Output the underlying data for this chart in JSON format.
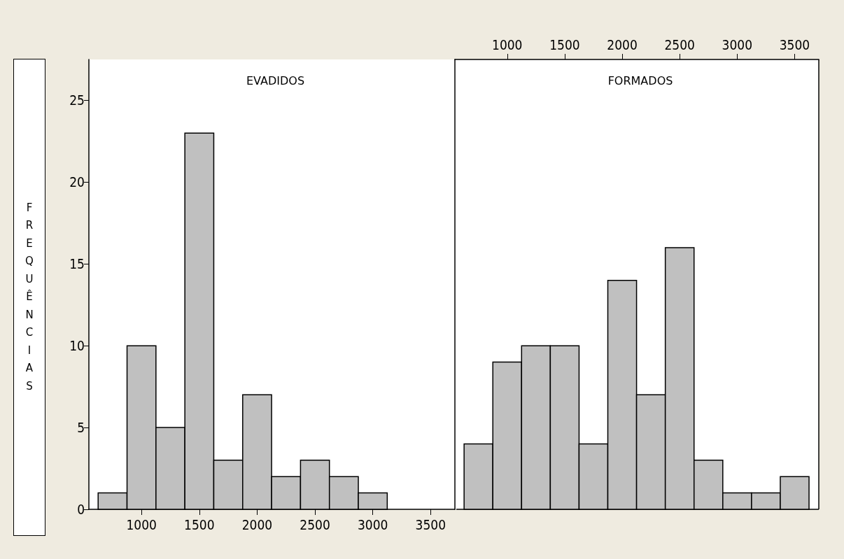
{
  "chart_data": [
    {
      "type": "histogram",
      "title": "EVADIDOS",
      "ylabel": "FREQUÊNCIAS",
      "bins": [
        625,
        875,
        1125,
        1375,
        1625,
        1875,
        2125,
        2375,
        2625,
        2875,
        3125,
        3375,
        3625
      ],
      "values": [
        1,
        10,
        5,
        23,
        3,
        7,
        2,
        3,
        2,
        1,
        0,
        0
      ],
      "color": "#c0c0c0",
      "xlim": [
        545,
        3710
      ],
      "xticks": [
        1000,
        1500,
        2000,
        2500,
        3000,
        3500
      ],
      "ylim": [
        0,
        27.5
      ],
      "yticks": [
        0,
        5,
        10,
        15,
        20,
        25
      ],
      "grid": false
    },
    {
      "type": "histogram",
      "title": "FORMADOS",
      "bins": [
        625,
        875,
        1125,
        1375,
        1625,
        1875,
        2125,
        2375,
        2625,
        2875,
        3125,
        3375,
        3625
      ],
      "values": [
        4,
        9,
        10,
        10,
        4,
        14,
        7,
        16,
        3,
        1,
        1,
        2
      ],
      "color": "#c0c0c0",
      "xlim": [
        545,
        3710
      ],
      "xticks": [
        1000,
        1500,
        2000,
        2500,
        3000,
        3500
      ],
      "ylim": [
        0,
        27.5
      ],
      "yticks": [
        0,
        5,
        10,
        15,
        20,
        25
      ],
      "tick_labels": "x",
      "grid": false
    }
  ]
}
